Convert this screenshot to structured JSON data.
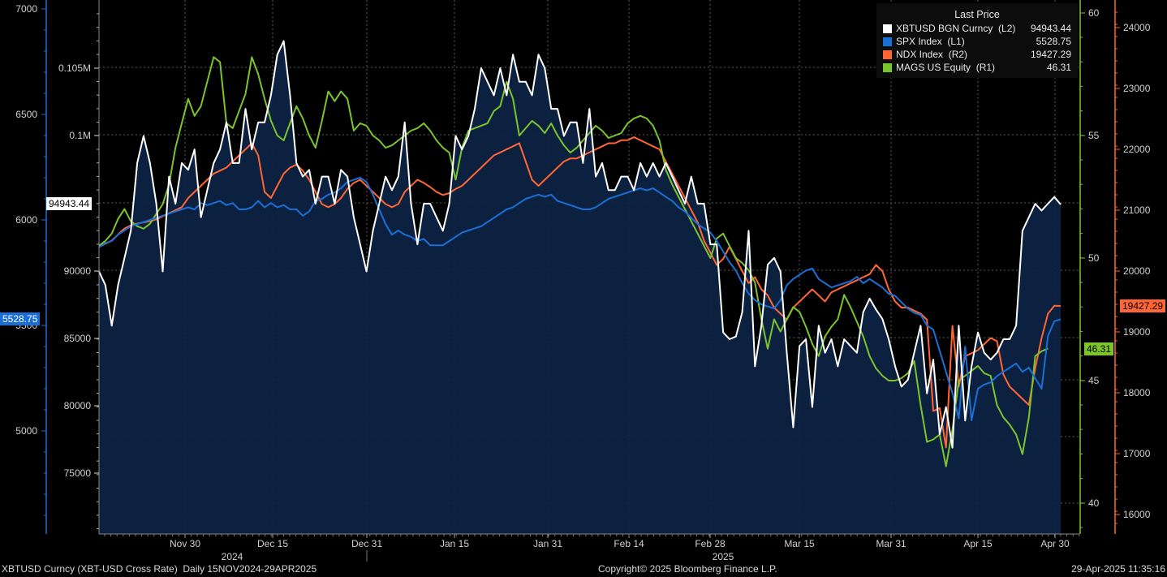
{
  "chart_data": {
    "type": "line",
    "title": "",
    "x_ticks": [
      "Nov 30",
      "Dec 15",
      "Dec 31",
      "Jan 15",
      "Jan 31",
      "Feb 14",
      "Feb 28",
      "Mar 15",
      "Mar 31",
      "Apr 15",
      "Apr 30"
    ],
    "years": [
      "2024",
      "2025"
    ],
    "axes": {
      "L1": {
        "ticks": [
          "7000",
          "6500",
          "6000",
          "5500",
          "5000"
        ],
        "color": "#1a6fd6"
      },
      "L2": {
        "ticks": [
          "0.105M",
          "0.1M",
          "90000",
          "85000",
          "80000",
          "75000"
        ],
        "color": "#ffffff"
      },
      "R1": {
        "ticks": [
          "60",
          "55",
          "50",
          "45",
          "40"
        ],
        "color": "#7cc42c"
      },
      "R2": {
        "ticks": [
          "24000",
          "23000",
          "22000",
          "21000",
          "20000",
          "19000",
          "18000",
          "17000",
          "16000"
        ],
        "color": "#ff6633"
      }
    },
    "legend_title": "Last Price",
    "series": [
      {
        "name": "XBTUSD BGN Curncy  (L2)",
        "last": "94943.44",
        "color": "#ffffff",
        "axis": "L2",
        "values": [
          90000,
          89000,
          86000,
          89000,
          91000,
          93000,
          98000,
          100000,
          98000,
          95000,
          90000,
          97000,
          95000,
          98000,
          97500,
          99000,
          94000,
          96000,
          98000,
          99000,
          101000,
          98000,
          98000,
          102000,
          99000,
          101000,
          101000,
          103000,
          106000,
          107000,
          103000,
          98000,
          97000,
          97500,
          95000,
          97000,
          97000,
          95000,
          97500,
          97000,
          94000,
          92000,
          90000,
          93000,
          95000,
          97000,
          96000,
          97000,
          101000,
          95000,
          92000,
          95000,
          95000,
          94000,
          93000,
          95000,
          100000,
          99000,
          100000,
          102000,
          105000,
          104000,
          103000,
          105000,
          103000,
          106000,
          104000,
          104000,
          103000,
          106000,
          105000,
          102000,
          102000,
          100000,
          101000,
          101000,
          98000,
          102000,
          97000,
          98000,
          96000,
          96000,
          97000,
          97000,
          96000,
          98000,
          97000,
          98000,
          97000,
          98000,
          97000,
          96000,
          95000,
          97000,
          95000,
          95000,
          92000,
          92000,
          85500,
          85000,
          85200,
          87000,
          93000,
          83000,
          86000,
          90500,
          91000,
          90000,
          84000,
          78500,
          84500,
          85000,
          80000,
          86000,
          84000,
          85000,
          83000,
          85000,
          84500,
          84000,
          87000,
          88000,
          87200,
          86500,
          85000,
          83000,
          81500,
          82000,
          84000,
          86000,
          81000,
          83500,
          78000,
          80000,
          77000,
          86000,
          79000,
          83000,
          85500,
          84000,
          83500,
          84000,
          85000,
          85000,
          86000,
          93000,
          94000,
          95000,
          94500,
          95000,
          95500,
          94943
        ]
      },
      {
        "name": "SPX Index  (L1)",
        "last": "5528.75",
        "color": "#1a6fd6",
        "axis": "L1",
        "values": [
          5870,
          5890,
          5900,
          5930,
          5950,
          5970,
          5980,
          5990,
          6000,
          6010,
          6020,
          6030,
          6040,
          6050,
          6060,
          6050,
          6080,
          6070,
          6080,
          6090,
          6070,
          6080,
          6050,
          6050,
          6060,
          6090,
          6060,
          6080,
          6060,
          6070,
          6050,
          6050,
          6020,
          6040,
          6090,
          6100,
          6120,
          6130,
          6150,
          6180,
          6190,
          6200,
          6180,
          6120,
          6050,
          5980,
          5930,
          5950,
          5930,
          5920,
          5900,
          5910,
          5880,
          5880,
          5880,
          5900,
          5920,
          5940,
          5950,
          5960,
          5970,
          5990,
          6010,
          6030,
          6050,
          6060,
          6080,
          6100,
          6110,
          6120,
          6110,
          6120,
          6090,
          6080,
          6070,
          6060,
          6050,
          6050,
          6060,
          6080,
          6100,
          6110,
          6120,
          6130,
          6140,
          6150,
          6140,
          6150,
          6130,
          6110,
          6090,
          6060,
          6040,
          6010,
          5980,
          5960,
          5940,
          5900,
          5850,
          5800,
          5760,
          5700,
          5650,
          5620,
          5600,
          5590,
          5580,
          5620,
          5690,
          5720,
          5740,
          5760,
          5770,
          5720,
          5700,
          5680,
          5690,
          5700,
          5710,
          5730,
          5700,
          5720,
          5700,
          5680,
          5650,
          5640,
          5610,
          5580,
          5560,
          5550,
          5500,
          5480,
          5380,
          5280,
          5180,
          5060,
          5400,
          5050,
          5200,
          5220,
          5230,
          5260,
          5280,
          5300,
          5320,
          5280,
          5300,
          5250,
          5200,
          5450,
          5520,
          5528.75
        ]
      },
      {
        "name": "NDX Index  (R2)",
        "last": "19427.29",
        "color": "#ff6633",
        "axis": "R2",
        "values": [
          20400,
          20450,
          20500,
          20600,
          20700,
          20750,
          20780,
          20800,
          20820,
          20850,
          20900,
          20950,
          21000,
          21050,
          21200,
          21300,
          21400,
          21500,
          21600,
          21650,
          21700,
          21800,
          21900,
          22000,
          22100,
          21900,
          21300,
          21200,
          21400,
          21600,
          21700,
          21750,
          21650,
          21500,
          21300,
          21100,
          21050,
          21100,
          21200,
          21350,
          21450,
          21500,
          21400,
          21300,
          21200,
          21100,
          21050,
          21100,
          21300,
          21400,
          21500,
          21450,
          21380,
          21300,
          21250,
          21280,
          21350,
          21400,
          21500,
          21600,
          21700,
          21800,
          21900,
          21950,
          22000,
          22050,
          22100,
          21800,
          21500,
          21400,
          21500,
          21600,
          21700,
          21800,
          21850,
          21850,
          21900,
          21950,
          22000,
          22050,
          22100,
          22100,
          22150,
          22150,
          22200,
          22150,
          22100,
          22050,
          22000,
          21800,
          21600,
          21400,
          21200,
          21000,
          20800,
          20500,
          20300,
          20100,
          20200,
          20400,
          20200,
          20000,
          19800,
          19900,
          19700,
          19600,
          19400,
          19300,
          19200,
          19400,
          19500,
          19600,
          19700,
          19600,
          19500,
          19650,
          19700,
          19750,
          19800,
          19850,
          19900,
          19950,
          20100,
          20000,
          19700,
          19500,
          19400,
          19400,
          19350,
          19300,
          19200,
          17700,
          17750,
          17100,
          19100,
          18100,
          18600,
          18650,
          18700,
          18800,
          18900,
          18850,
          18300,
          18100,
          18000,
          17900,
          17800,
          18400,
          18900,
          19300,
          19430,
          19427.29
        ]
      },
      {
        "name": "MAGS US Equity  (R1)",
        "last": "46.31",
        "color": "#7cc42c",
        "axis": "R1",
        "values": [
          50.5,
          50.7,
          51.0,
          51.6,
          52.0,
          51.5,
          51.3,
          51.2,
          51.4,
          51.8,
          52.2,
          53.0,
          54.5,
          55.5,
          56.5,
          55.8,
          56.2,
          57.2,
          58.2,
          58.0,
          55.5,
          55.3,
          56.0,
          56.7,
          58.2,
          57.5,
          56.5,
          55.6,
          55.0,
          54.8,
          55.5,
          56.2,
          55.7,
          55.0,
          54.5,
          55.6,
          56.8,
          56.4,
          56.8,
          56.5,
          55.2,
          55.5,
          55.4,
          55.0,
          54.8,
          54.5,
          54.6,
          54.8,
          55.0,
          55.2,
          55.3,
          55.5,
          55.2,
          54.8,
          54.5,
          54.3,
          53.2,
          54.5,
          55.2,
          55.3,
          55.4,
          55.5,
          56.0,
          56.2,
          57.2,
          56.5,
          55.0,
          55.3,
          55.6,
          55.4,
          55.1,
          55.5,
          55.0,
          54.6,
          54.3,
          54.5,
          54.8,
          55.1,
          55.4,
          55.2,
          54.9,
          55.0,
          55.1,
          55.5,
          55.7,
          55.8,
          55.7,
          55.4,
          54.8,
          53.6,
          53.0,
          52.5,
          52.0,
          51.5,
          51.0,
          50.5,
          50.0,
          50.8,
          51.0,
          50.5,
          50.0,
          49.8,
          49.5,
          49.0,
          47.5,
          46.3,
          47.5,
          47.0,
          47.5,
          48.0,
          47.8,
          47.2,
          46.5,
          46.0,
          46.8,
          47.2,
          47.5,
          48.5,
          48.0,
          47.4,
          46.8,
          46.0,
          45.5,
          45.2,
          45.0,
          45.0,
          45.1,
          45.3,
          45.8,
          44.0,
          42.5,
          42.6,
          42.8,
          41.5,
          43.0,
          45.0,
          45.2,
          45.4,
          45.6,
          45.3,
          45.2,
          44.0,
          43.5,
          43.2,
          42.8,
          42.0,
          43.5,
          46.0,
          46.2,
          46.31
        ]
      }
    ]
  },
  "flags": {
    "xbt": "94943.44",
    "spx": "5528.75",
    "ndx": "19427.29",
    "mags": "46.31"
  },
  "footer": {
    "left": "XBTUSD Curncy (XBT-USD Cross Rate)  Daily 15NOV2024-29APR2025",
    "center": "Copyright© 2025 Bloomberg Finance L.P.",
    "right": "29-Apr-2025 11:35:16"
  }
}
